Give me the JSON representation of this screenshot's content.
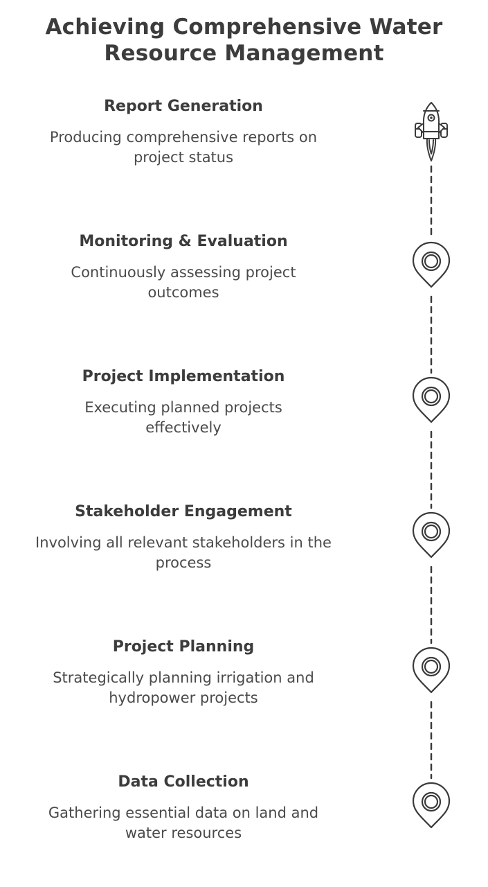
{
  "title": "Achieving Comprehensive Water Resource Management",
  "steps": [
    {
      "title": "Report Generation",
      "description": "Producing comprehensive reports on project status",
      "icon": "rocket-icon"
    },
    {
      "title": "Monitoring & Evaluation",
      "description": "Continuously assessing project outcomes",
      "icon": "map-pin-icon"
    },
    {
      "title": "Project Implementation",
      "description": "Executing planned projects effectively",
      "icon": "map-pin-icon"
    },
    {
      "title": "Stakeholder Engagement",
      "description": "Involving all relevant stakeholders in the process",
      "icon": "map-pin-icon"
    },
    {
      "title": "Project Planning",
      "description": "Strategically planning irrigation and hydropower projects",
      "icon": "map-pin-icon"
    },
    {
      "title": "Data Collection",
      "description": "Gathering essential data on land and water resources",
      "icon": "map-pin-icon"
    }
  ],
  "colors": {
    "stroke": "#3a3a3a",
    "text": "#3c3c3c"
  }
}
